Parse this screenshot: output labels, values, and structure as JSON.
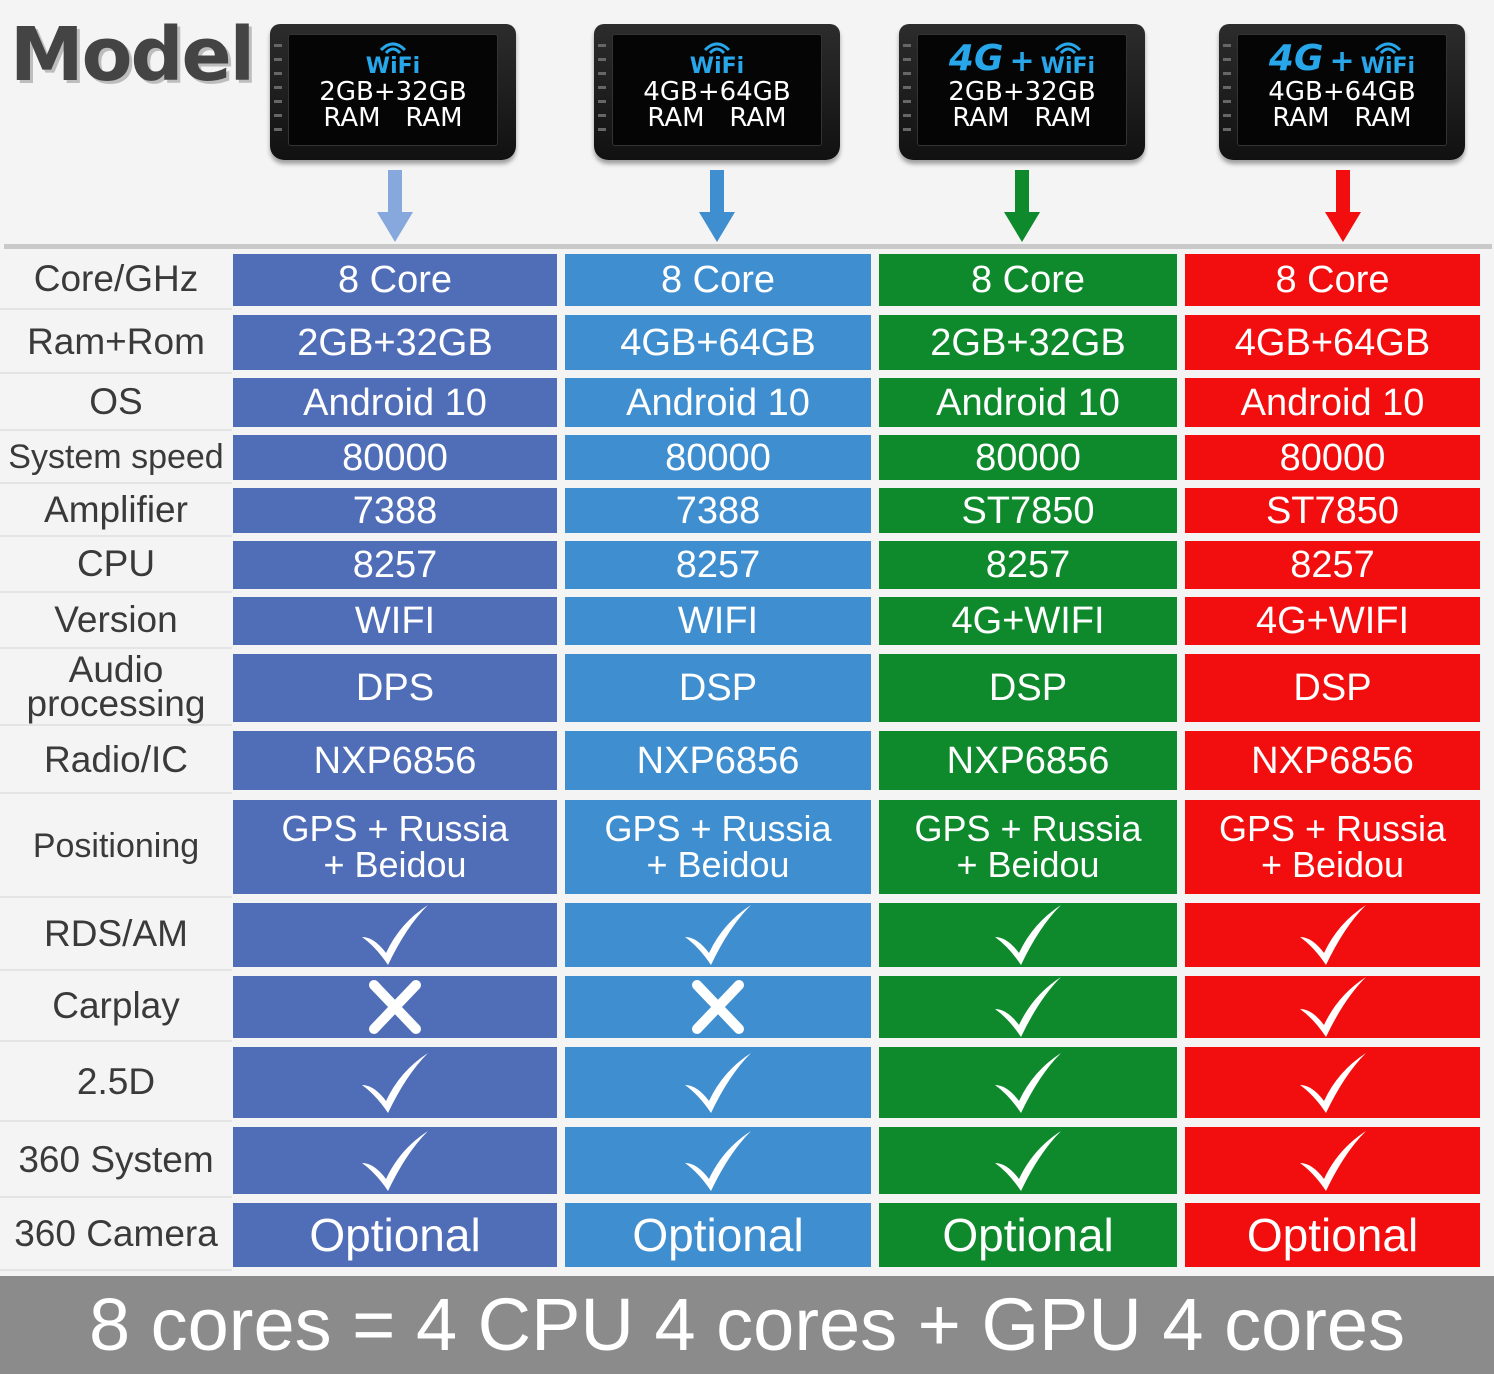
{
  "title": "Model",
  "models": [
    {
      "network": "WiFi",
      "has_4g": false,
      "memory": "2GB+32GB",
      "ram": "RAM   RAM",
      "color": "#506eb7",
      "arrow_color": "#86a8dc"
    },
    {
      "network": "WiFi",
      "has_4g": false,
      "memory": "4GB+64GB",
      "ram": "RAM   RAM",
      "color": "#3f8ed0",
      "arrow_color": "#3f8ed0"
    },
    {
      "network": "WiFi",
      "has_4g": true,
      "label_4g": "4G",
      "plus": "+",
      "memory": "2GB+32GB",
      "ram": "RAM   RAM",
      "color": "#0e8a2c",
      "arrow_color": "#0e8a2c"
    },
    {
      "network": "WiFi",
      "has_4g": true,
      "label_4g": "4G",
      "plus": "+",
      "memory": "4GB+64GB",
      "ram": "RAM   RAM",
      "color": "#f20e0e",
      "arrow_color": "#f20e0e"
    }
  ],
  "rows": [
    {
      "label": "Core/GHz",
      "values": [
        "8 Core",
        "8 Core",
        "8 Core",
        "8 Core"
      ]
    },
    {
      "label": "Ram+Rom",
      "values": [
        "2GB+32GB",
        "4GB+64GB",
        "2GB+32GB",
        "4GB+64GB"
      ]
    },
    {
      "label": "OS",
      "values": [
        "Android 10",
        "Android 10",
        "Android 10",
        "Android 10"
      ]
    },
    {
      "label": "System speed",
      "values": [
        "80000",
        "80000",
        "80000",
        "80000"
      ]
    },
    {
      "label": "Amplifier",
      "values": [
        "7388",
        "7388",
        "ST7850",
        "ST7850"
      ]
    },
    {
      "label": "CPU",
      "values": [
        "8257",
        "8257",
        "8257",
        "8257"
      ]
    },
    {
      "label": "Version",
      "values": [
        "WIFI",
        "WIFI",
        "4G+WIFI",
        "4G+WIFI"
      ]
    },
    {
      "label": "Audio\nprocessing",
      "values": [
        "DPS",
        "DSP",
        "DSP",
        "DSP"
      ]
    },
    {
      "label": "Radio/IC",
      "values": [
        "NXP6856",
        "NXP6856",
        "NXP6856",
        "NXP6856"
      ]
    },
    {
      "label": "Positioning",
      "values": [
        "GPS + Russia\n+ Beidou",
        "GPS + Russia\n+ Beidou",
        "GPS + Russia\n+ Beidou",
        "GPS + Russia\n+ Beidou"
      ]
    },
    {
      "label": "RDS/AM",
      "marks": [
        "check",
        "check",
        "check",
        "check"
      ]
    },
    {
      "label": "Carplay",
      "marks": [
        "cross",
        "cross",
        "check",
        "check"
      ]
    },
    {
      "label": "2.5D",
      "marks": [
        "check",
        "check",
        "check",
        "check"
      ]
    },
    {
      "label": "360 System",
      "marks": [
        "check",
        "check",
        "check",
        "check"
      ]
    },
    {
      "label": "360 Camera",
      "values": [
        "Optional",
        "Optional",
        "Optional",
        "Optional"
      ]
    }
  ],
  "footer": "8 cores = 4 CPU 4 cores + GPU 4 cores"
}
